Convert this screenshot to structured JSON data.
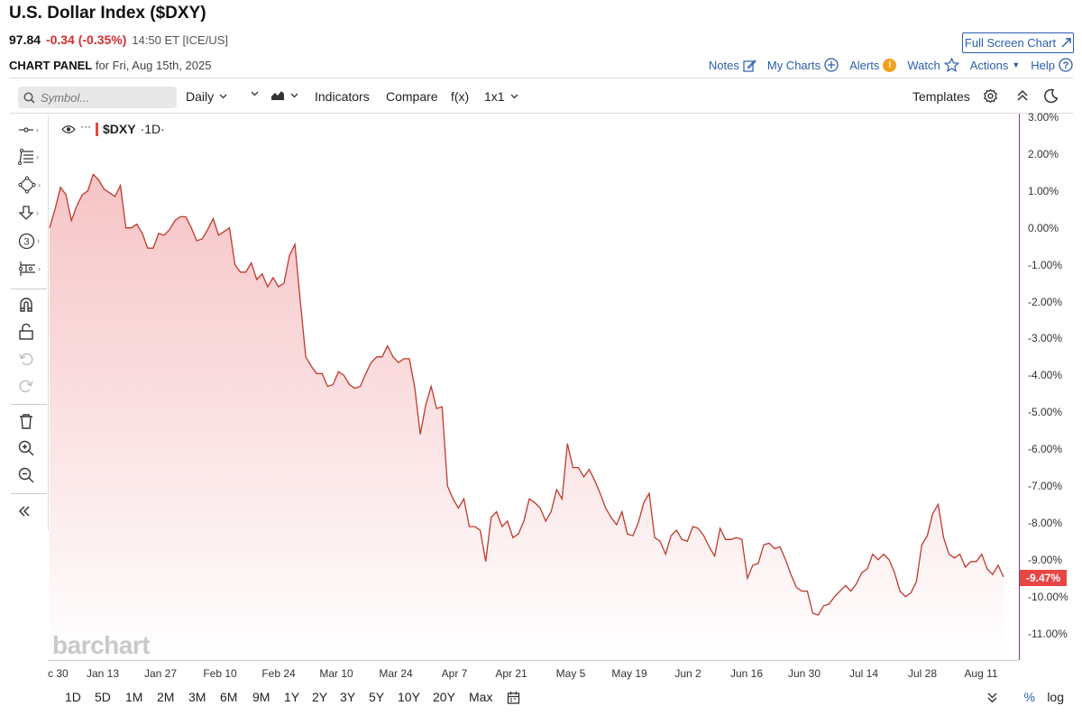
{
  "header": {
    "title": "U.S. Dollar Index ($DXY)",
    "price": "97.84",
    "change": "-0.34 (-0.35%)",
    "time_exchange": "14:50 ET [ICE/US]",
    "fullscreen_label": "Full Screen Chart"
  },
  "panel": {
    "label": "CHART PANEL",
    "date_text": "for Fri, Aug 15th, 2025",
    "notes": "Notes",
    "my_charts": "My Charts",
    "alerts": "Alerts",
    "watch": "Watch",
    "actions": "Actions",
    "help": "Help"
  },
  "toolbar": {
    "symbol_placeholder": "Symbol...",
    "interval": "Daily",
    "indicators": "Indicators",
    "compare": "Compare",
    "fx": "f(x)",
    "layout": "1x1",
    "templates": "Templates"
  },
  "series_label": {
    "symbol": "$DXY",
    "interval": "·1D·"
  },
  "watermark": "barchart",
  "last_value_badge": "-9.47%",
  "bottom": {
    "ranges": [
      "1D",
      "5D",
      "1M",
      "2M",
      "3M",
      "6M",
      "9M",
      "1Y",
      "2Y",
      "3Y",
      "5Y",
      "10Y",
      "20Y",
      "Max"
    ],
    "pct": "%",
    "log": "log"
  },
  "colors": {
    "line": "#c0392b",
    "fill_top": "#f6c4c6",
    "accent_blue": "#2a5db0",
    "change_red": "#d12f2f",
    "badge_red": "#e84545"
  },
  "chart_data": {
    "type": "area",
    "ylabel": "",
    "xlabel": "",
    "y_unit": "%",
    "ylim": [
      -11.8,
      3.0
    ],
    "y_ticks": [
      "3.00%",
      "2.00%",
      "1.00%",
      "0.00%",
      "-1.00%",
      "-2.00%",
      "-3.00%",
      "-4.00%",
      "-5.00%",
      "-6.00%",
      "-7.00%",
      "-8.00%",
      "-9.00%",
      "-10.00%",
      "-11.00%"
    ],
    "x_ticks": [
      "c 30",
      "Jan 13",
      "Jan 27",
      "Feb 10",
      "Feb 24",
      "Mar 10",
      "Mar 24",
      "Apr 7",
      "Apr 21",
      "May 5",
      "May 19",
      "Jun 2",
      "Jun 16",
      "Jun 30",
      "Jul 14",
      "Jul 28",
      "Aug 11"
    ],
    "series": [
      {
        "values": [
          0.0,
          0.5,
          1.1,
          0.9,
          0.2,
          0.6,
          0.9,
          1.0,
          1.45,
          1.3,
          1.05,
          0.95,
          0.85,
          1.15,
          0.0,
          0.0,
          0.1,
          -0.15,
          -0.55,
          -0.55,
          -0.15,
          -0.2,
          -0.05,
          0.2,
          0.3,
          0.3,
          0.0,
          -0.35,
          -0.3,
          -0.05,
          0.25,
          -0.2,
          -0.1,
          0.0,
          -1.0,
          -1.2,
          -1.2,
          -0.95,
          -1.4,
          -1.25,
          -1.6,
          -1.35,
          -1.6,
          -1.5,
          -0.75,
          -0.45,
          -2.0,
          -3.5,
          -3.75,
          -3.95,
          -3.95,
          -4.3,
          -4.25,
          -3.9,
          -4.0,
          -4.25,
          -4.35,
          -4.3,
          -3.95,
          -3.65,
          -3.5,
          -3.5,
          -3.2,
          -3.5,
          -3.65,
          -3.55,
          -3.55,
          -4.35,
          -5.6,
          -4.8,
          -4.3,
          -4.9,
          -4.85,
          -7.0,
          -7.35,
          -7.6,
          -7.35,
          -8.1,
          -8.1,
          -8.2,
          -9.05,
          -7.85,
          -7.7,
          -8.1,
          -7.95,
          -8.4,
          -8.3,
          -7.95,
          -7.35,
          -7.45,
          -7.6,
          -7.95,
          -7.7,
          -7.1,
          -7.35,
          -5.85,
          -6.5,
          -6.5,
          -6.75,
          -6.55,
          -6.85,
          -7.2,
          -7.6,
          -7.85,
          -8.05,
          -7.7,
          -8.3,
          -8.35,
          -8.0,
          -7.45,
          -7.2,
          -8.4,
          -8.5,
          -8.85,
          -8.35,
          -8.2,
          -8.45,
          -8.5,
          -8.1,
          -8.15,
          -8.35,
          -8.65,
          -8.9,
          -8.15,
          -8.45,
          -8.45,
          -8.4,
          -8.45,
          -9.5,
          -9.15,
          -9.1,
          -8.6,
          -8.55,
          -8.7,
          -8.65,
          -9.0,
          -9.4,
          -9.75,
          -9.85,
          -9.85,
          -10.45,
          -10.5,
          -10.25,
          -10.2,
          -10.0,
          -9.85,
          -9.7,
          -9.85,
          -9.65,
          -9.35,
          -9.25,
          -8.85,
          -9.0,
          -8.85,
          -9.0,
          -9.35,
          -9.85,
          -10.0,
          -9.9,
          -9.6,
          -8.6,
          -8.35,
          -7.75,
          -7.5,
          -8.4,
          -8.85,
          -8.95,
          -8.85,
          -9.2,
          -9.05,
          -9.05,
          -8.85,
          -9.25,
          -9.4,
          -9.15,
          -9.47
        ]
      }
    ],
    "last_value": -9.47
  }
}
